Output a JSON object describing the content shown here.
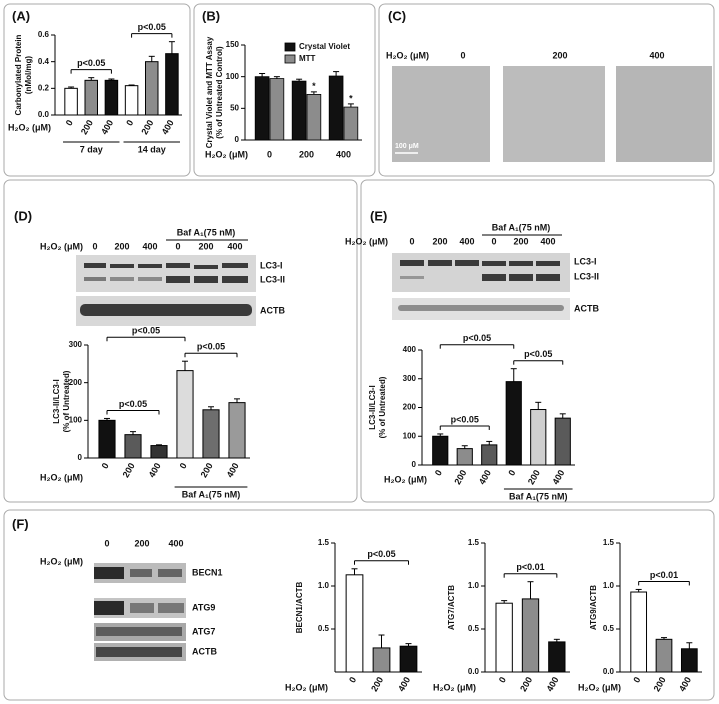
{
  "panel_labels": [
    "(A)",
    "(B)",
    "(C)",
    "(D)",
    "(E)",
    "(F)"
  ],
  "blots": {
    "C": {
      "xlabel": "H₂O₂ (μM)",
      "lanes": [
        "0",
        "200",
        "400"
      ],
      "scale": "100 μM"
    },
    "D": {
      "xlabel": "H₂O₂ (μM)",
      "lanes": [
        "0",
        "200",
        "400",
        "0",
        "200",
        "400"
      ],
      "treatment": "Baf A₁(75 nM)",
      "bands": [
        "LC3-I",
        "LC3-II",
        "ACTB"
      ]
    },
    "E": {
      "xlabel": "H₂O₂ (μM)",
      "lanes": [
        "0",
        "200",
        "400",
        "0",
        "200",
        "400"
      ],
      "treatment": "Baf A₁(75 nM)",
      "bands": [
        "LC3-I",
        "LC3-II",
        "ACTB"
      ]
    },
    "F": {
      "xlabel": "H₂O₂ (μM)",
      "lanes": [
        "0",
        "200",
        "400"
      ],
      "bands": [
        "BECN1",
        "ATG9",
        "ATG7",
        "ACTB"
      ]
    }
  },
  "chart_data": [
    {
      "type": "bar",
      "ylabel": [
        "Carbonylated Protein",
        "(nMol/mg)"
      ],
      "xlabel": "H₂O₂ (μM)",
      "categories": [
        "0",
        "200",
        "400",
        "0",
        "200",
        "400"
      ],
      "groups": [
        "7 day",
        "14 day"
      ],
      "values": [
        0.2,
        0.26,
        0.26,
        0.22,
        0.4,
        0.46
      ],
      "errors": [
        0.01,
        0.02,
        0.01,
        0.005,
        0.04,
        0.09
      ],
      "colors": [
        "#ffffff",
        "#8c8c8c",
        "#111111",
        "#ffffff",
        "#8c8c8c",
        "#111111"
      ],
      "ylim": [
        0,
        0.6
      ],
      "yticks": [
        {
          "value": 0,
          "label": "0.0"
        },
        0.2,
        0.4,
        0.6
      ],
      "annotations": [
        "p<0.05",
        "p<0.05"
      ]
    },
    {
      "type": "grouped-bar",
      "ylabel": [
        "Crystal Violet and MTT Assay",
        "(% of Untreated Control)"
      ],
      "xlabel": "H₂O₂ (μM)",
      "categories": [
        "0",
        "200",
        "400"
      ],
      "series": [
        {
          "name": "Crystal Violet",
          "color": "#111111",
          "values": [
            100,
            93,
            101
          ],
          "errors": [
            5,
            3,
            7
          ]
        },
        {
          "name": "MTT",
          "color": "#8c8c8c",
          "values": [
            97,
            72,
            52
          ],
          "errors": [
            3,
            4,
            5
          ]
        }
      ],
      "ylim": [
        0,
        150
      ],
      "yticks": [
        0,
        50,
        100,
        150
      ],
      "annotations": [
        "*",
        "*"
      ]
    },
    {
      "type": "bar",
      "ylabel": [
        "LC3-II/LC3-I",
        "(% of Untreated)"
      ],
      "xlabel": "H₂O₂ (μM)",
      "categories": [
        "0",
        "200",
        "400",
        "0",
        "200",
        "400"
      ],
      "groups": [
        "Baf A₁(75 nM)"
      ],
      "values": [
        100,
        62,
        33,
        232,
        128,
        147
      ],
      "errors": [
        5,
        8,
        2,
        25,
        8,
        10
      ],
      "colors": [
        "#111111",
        "#5a5a5a",
        "#333333",
        "#dcdcdc",
        "#6e6e6e",
        "#9a9a9a"
      ],
      "ylim": [
        0,
        300
      ],
      "yticks": [
        0,
        100,
        200,
        300
      ],
      "annotations": [
        "p<0.05",
        "p<0.05",
        "p<0.05"
      ]
    },
    {
      "type": "bar",
      "ylabel": [
        "LC3-II/LC3-I",
        "(% of Untreated)"
      ],
      "xlabel": "H₂O₂ (μM)",
      "categories": [
        "0",
        "200",
        "400",
        "0",
        "200",
        "400"
      ],
      "groups": [
        "Baf A₁(75 nM)"
      ],
      "values": [
        100,
        57,
        70,
        290,
        193,
        163
      ],
      "errors": [
        8,
        10,
        12,
        45,
        25,
        15
      ],
      "colors": [
        "#111111",
        "#8c8c8c",
        "#5a5a5a",
        "#111111",
        "#cfcfcf",
        "#5a5a5a"
      ],
      "ylim": [
        0,
        400
      ],
      "yticks": [
        0,
        100,
        200,
        300,
        400
      ],
      "annotations": [
        "p<0.05",
        "p<0.05",
        "p<0.05"
      ]
    },
    {
      "type": "bar",
      "ylabel": [
        "BECN1/ACTB"
      ],
      "xlabel": "H₂O₂ (μM)",
      "categories": [
        "0",
        "200",
        "400"
      ],
      "values": [
        1.13,
        0.28,
        0.3
      ],
      "errors": [
        0.07,
        0.15,
        0.03
      ],
      "colors": [
        "#ffffff",
        "#8c8c8c",
        "#111111"
      ],
      "ylim": [
        0,
        1.5
      ],
      "yticks": [
        0.5,
        {
          "value": 1,
          "label": "1.0"
        },
        1.5
      ],
      "annotations": [
        "p<0.05"
      ]
    },
    {
      "type": "bar",
      "ylabel": [
        "ATG7/ACTB"
      ],
      "xlabel": "H₂O₂ (μM)",
      "categories": [
        "0",
        "200",
        "400"
      ],
      "values": [
        0.8,
        0.85,
        0.35
      ],
      "errors": [
        0.03,
        0.2,
        0.03
      ],
      "colors": [
        "#ffffff",
        "#8c8c8c",
        "#111111"
      ],
      "ylim": [
        0,
        1.5
      ],
      "yticks": [
        {
          "value": 0,
          "label": "0.0"
        },
        0.5,
        {
          "value": 1,
          "label": "1.0"
        },
        1.5
      ],
      "annotations": [
        "p<0.01"
      ]
    },
    {
      "type": "bar",
      "ylabel": [
        "ATG9/ACTB"
      ],
      "xlabel": "H₂O₂ (μM)",
      "categories": [
        "0",
        "200",
        "400"
      ],
      "values": [
        0.93,
        0.38,
        0.27
      ],
      "errors": [
        0.03,
        0.02,
        0.07
      ],
      "colors": [
        "#ffffff",
        "#8c8c8c",
        "#111111"
      ],
      "ylim": [
        0,
        1.5
      ],
      "yticks": [
        {
          "value": 0,
          "label": "0.0"
        },
        0.5,
        {
          "value": 1,
          "label": "1.0"
        },
        1.5
      ],
      "annotations": [
        "p<0.01"
      ]
    }
  ]
}
